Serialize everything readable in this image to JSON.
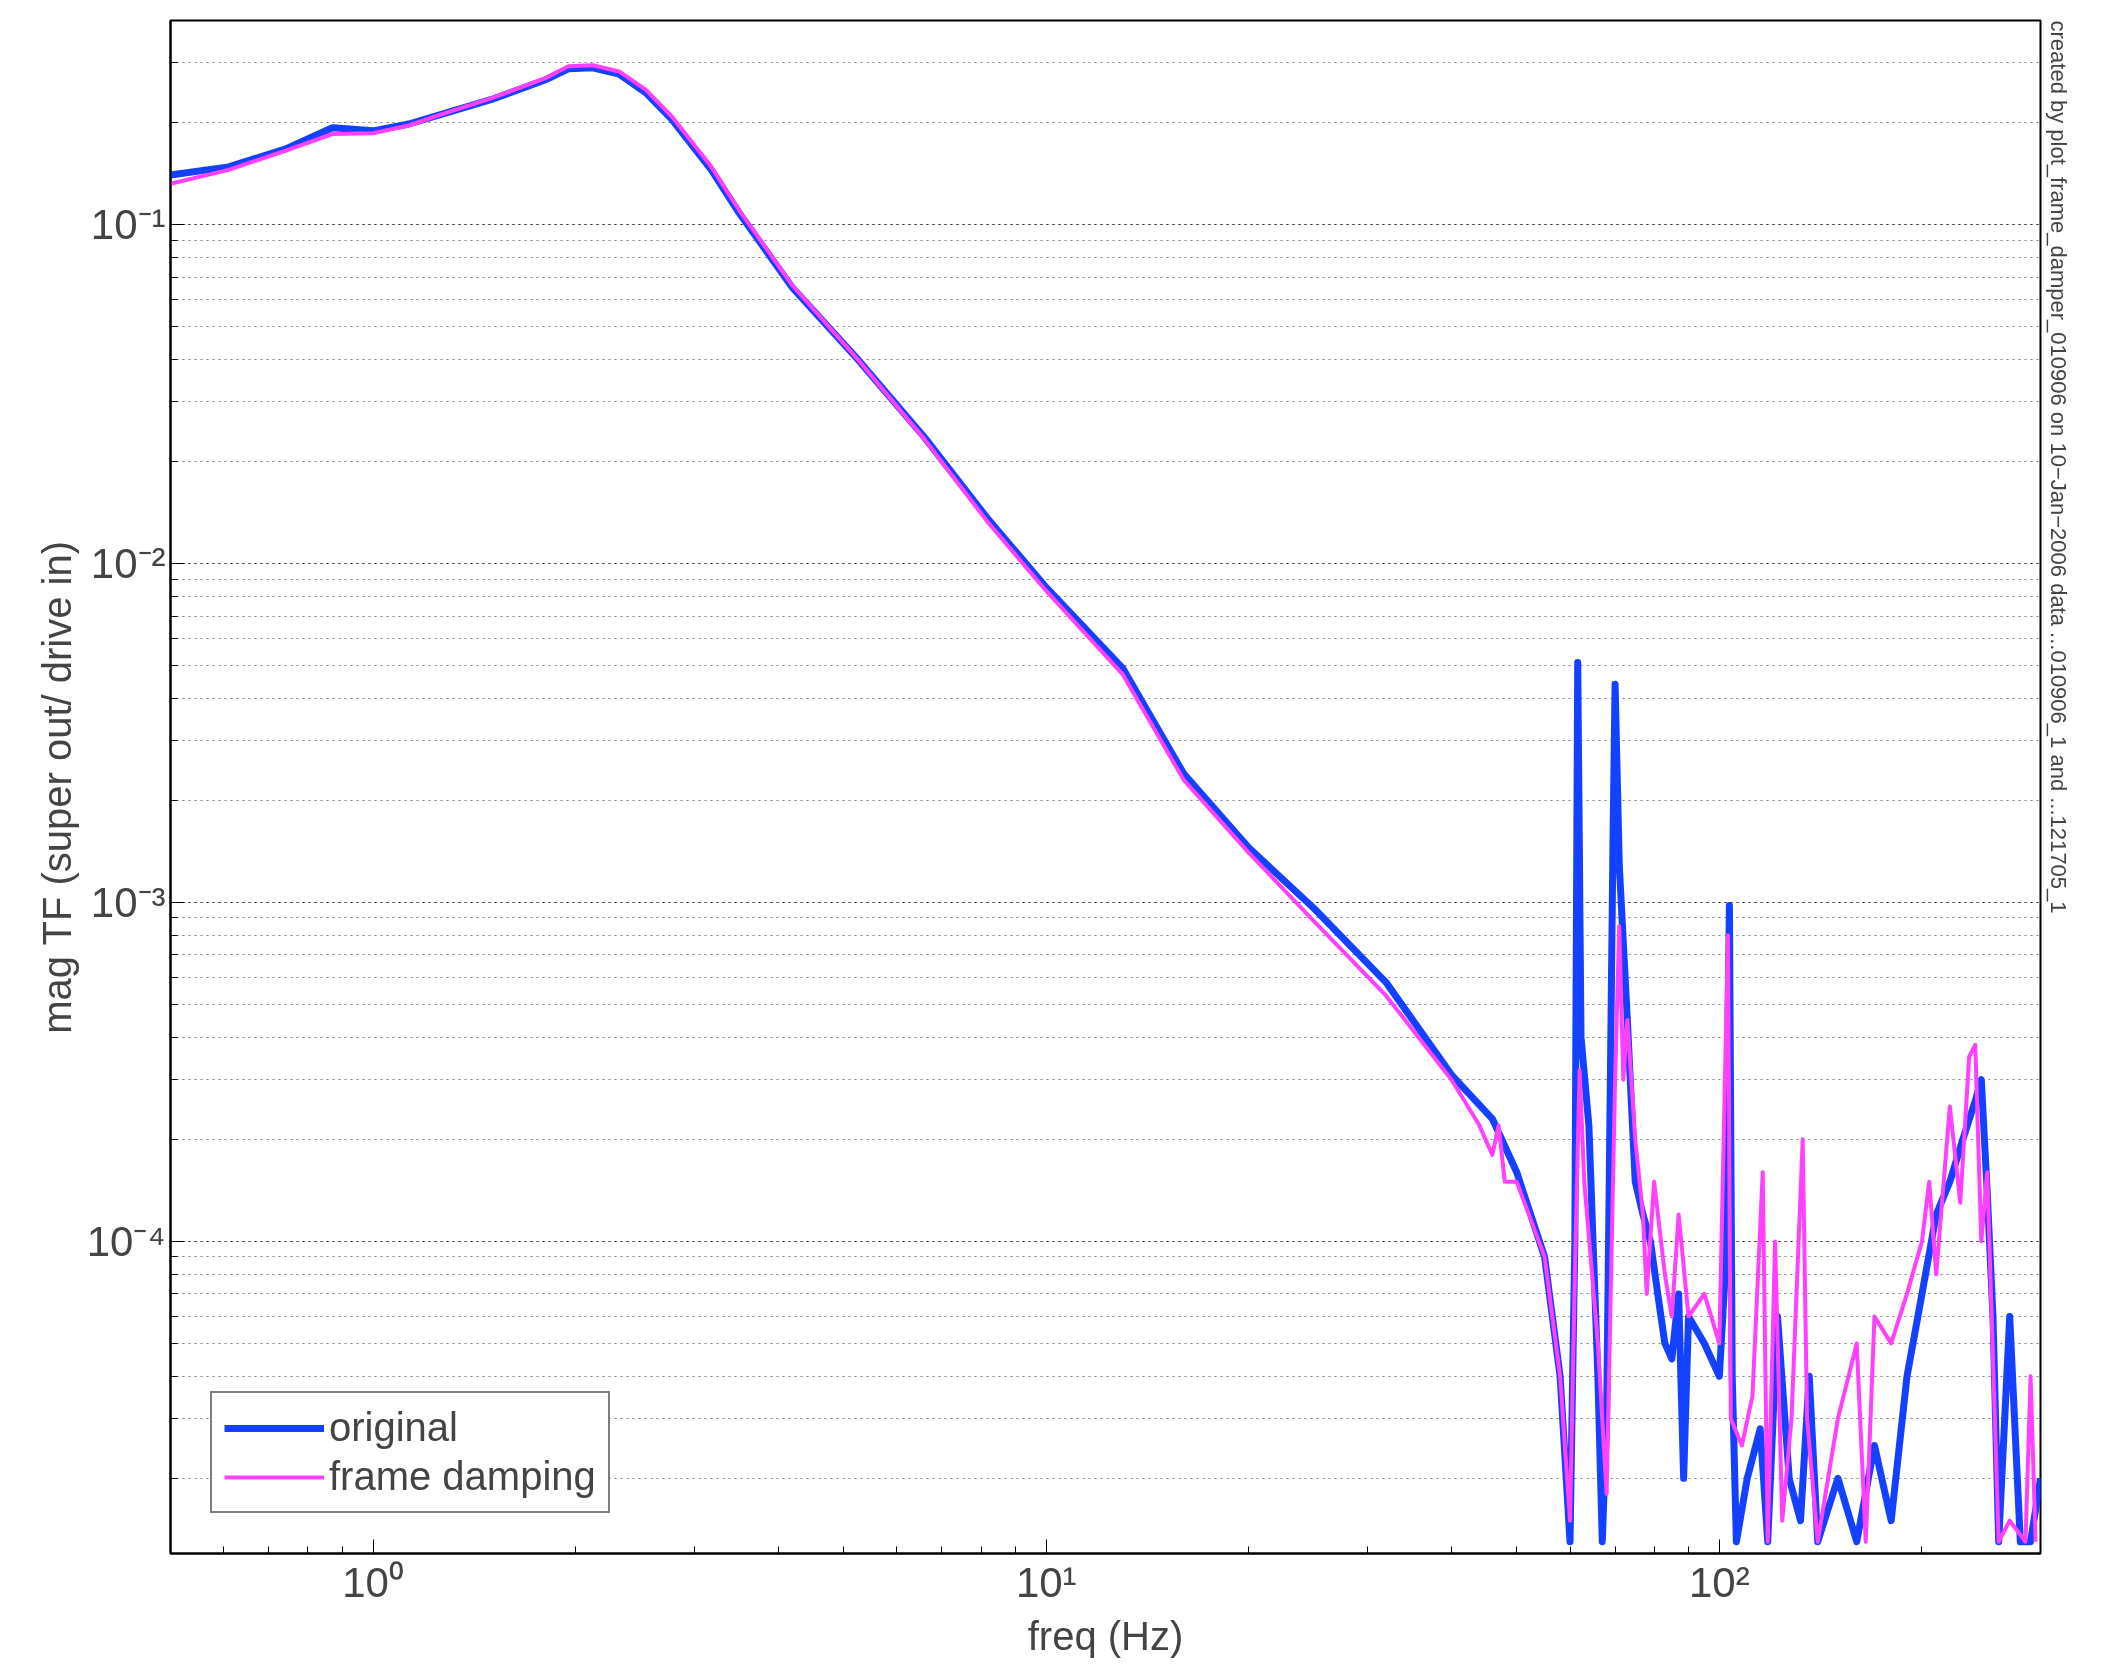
{
  "chart_data": {
    "type": "line",
    "xlabel": "freq (Hz)",
    "ylabel": "mag TF (super out/ drive in)",
    "log": "xy",
    "grid": true,
    "legend": "bottom left",
    "line_style": "solid",
    "xlim": [
      0.5,
      300
    ],
    "ylim": [
      1.2e-05,
      0.4
    ],
    "xticks": [
      {
        "value": 1,
        "label": "10⁰"
      },
      {
        "value": 10,
        "label": "10¹"
      },
      {
        "value": 100,
        "label": "10²"
      }
    ],
    "yticks": [
      {
        "value": 0.0001,
        "label": "10⁻⁴"
      },
      {
        "value": 0.001,
        "label": "10⁻³"
      },
      {
        "value": 0.01,
        "label": "10⁻²"
      },
      {
        "value": 0.1,
        "label": "10⁻¹"
      }
    ],
    "annotations": [
      "created by plot_frame_damper_010906 on 10−Jan−2006 data ...010906_1 and ...121705_1"
    ],
    "series": [
      {
        "name": "original",
        "color": "#1440ff",
        "x": [
          0.5,
          0.61,
          0.74,
          0.87,
          1.0,
          1.13,
          1.27,
          1.5,
          1.8,
          1.95,
          2.12,
          2.32,
          2.54,
          2.78,
          3.18,
          3.5,
          4.2,
          5.25,
          6.6,
          8.2,
          10,
          13,
          16,
          20,
          25,
          32,
          40,
          46,
          50,
          55,
          58,
          60,
          61,
          61.6,
          62.3,
          64,
          66,
          67,
          68,
          69.5,
          70,
          71,
          73,
          75,
          77,
          79,
          81,
          83,
          85,
          87,
          88.5,
          90,
          95,
          100,
          102,
          103.5,
          104.5,
          106,
          110,
          115,
          118,
          122,
          127,
          132,
          136,
          140,
          150,
          160,
          170,
          180,
          190,
          200,
          210,
          220,
          230,
          240,
          245,
          250,
          255,
          260,
          270,
          280,
          290,
          300
        ],
        "values": [
          0.14,
          0.148,
          0.167,
          0.193,
          0.189,
          0.198,
          0.212,
          0.234,
          0.267,
          0.288,
          0.29,
          0.278,
          0.245,
          0.204,
          0.145,
          0.108,
          0.065,
          0.04,
          0.0235,
          0.0135,
          0.0085,
          0.0049,
          0.0024,
          0.00145,
          0.00096,
          0.00058,
          0.00031,
          0.00023,
          0.00016,
          9e-05,
          4e-05,
          1.3e-05,
          0.0001,
          0.0051,
          0.0004,
          0.00022,
          4e-05,
          1.3e-05,
          3e-05,
          0.0015,
          0.0044,
          0.0013,
          0.00045,
          0.00015,
          0.00012,
          0.0001,
          7e-05,
          5e-05,
          4.5e-05,
          7e-05,
          2e-05,
          6e-05,
          5e-05,
          4e-05,
          8e-05,
          0.00098,
          4e-05,
          1.3e-05,
          2e-05,
          2.8e-05,
          1.3e-05,
          6e-05,
          2e-05,
          1.5e-05,
          4e-05,
          1.3e-05,
          2e-05,
          1.3e-05,
          2.5e-05,
          1.5e-05,
          4e-05,
          7e-05,
          0.00012,
          0.00015,
          0.0002,
          0.00026,
          0.0003,
          0.00014,
          6e-05,
          1.3e-05,
          6e-05,
          1.3e-05,
          1.3e-05,
          2e-05
        ]
      },
      {
        "name": "frame damping",
        "color": "#ff40ff",
        "x": [
          0.5,
          0.61,
          0.74,
          0.87,
          1.0,
          1.13,
          1.27,
          1.5,
          1.8,
          1.95,
          2.12,
          2.32,
          2.54,
          2.78,
          3.18,
          3.5,
          4.2,
          5.25,
          6.6,
          8.2,
          10,
          13,
          16,
          20,
          25,
          32,
          40,
          44,
          46,
          47,
          48,
          50,
          55,
          58,
          60,
          61,
          62,
          63,
          66,
          68,
          70,
          71,
          72,
          73,
          75,
          77,
          78,
          80,
          83,
          85,
          87,
          90,
          95,
          100,
          103,
          104,
          108,
          112,
          116,
          118,
          121,
          124,
          128,
          133,
          135,
          140,
          150,
          160,
          165,
          170,
          180,
          190,
          200,
          205,
          210,
          220,
          228,
          235,
          240,
          245,
          250,
          260,
          270,
          285,
          290,
          295
        ],
        "values": [
          0.132,
          0.145,
          0.165,
          0.185,
          0.186,
          0.196,
          0.212,
          0.236,
          0.27,
          0.293,
          0.295,
          0.283,
          0.25,
          0.208,
          0.148,
          0.11,
          0.066,
          0.04,
          0.0232,
          0.0132,
          0.0083,
          0.0047,
          0.0023,
          0.0014,
          0.00088,
          0.00053,
          0.0003,
          0.00022,
          0.00018,
          0.00022,
          0.00015,
          0.00015,
          9e-05,
          4e-05,
          1.5e-05,
          8e-05,
          0.00032,
          0.00015,
          5e-05,
          1.8e-05,
          0.0003,
          0.00085,
          0.0003,
          0.00045,
          0.0002,
          0.00012,
          7e-05,
          0.00015,
          8e-05,
          6e-05,
          0.00012,
          6e-05,
          7e-05,
          5e-05,
          0.0008,
          3e-05,
          2.5e-05,
          3.5e-05,
          0.00016,
          1.3e-05,
          0.0001,
          1.5e-05,
          3e-05,
          0.0002,
          3e-05,
          1.3e-05,
          3e-05,
          5e-05,
          1.3e-05,
          6e-05,
          5e-05,
          7e-05,
          0.0001,
          0.00015,
          8e-05,
          0.00025,
          0.00013,
          0.00035,
          0.00038,
          0.0001,
          0.00016,
          1.3e-05,
          1.5e-05,
          1.3e-05,
          4e-05,
          1.3e-05
        ]
      }
    ]
  }
}
